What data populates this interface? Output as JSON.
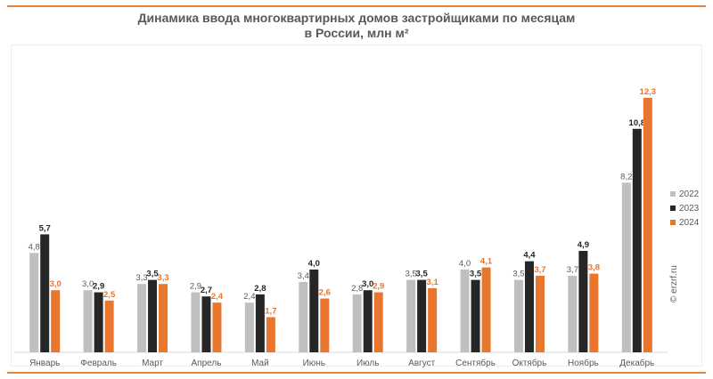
{
  "chart_data": {
    "type": "bar",
    "title": "Динамика ввода многоквартирных домов застройщиками по месяцам",
    "subtitle": "в России, млн м²",
    "xlabel": "",
    "ylabel": "",
    "ylim": [
      0,
      13.5
    ],
    "grid": false,
    "legend_position": "right",
    "categories": [
      "Январь",
      "Февраль",
      "Март",
      "Апрель",
      "Май",
      "Июнь",
      "Июль",
      "Август",
      "Сентябрь",
      "Октябрь",
      "Ноябрь",
      "Декабрь"
    ],
    "series": [
      {
        "name": "2022",
        "color": "#bfbfbf",
        "label_color": "#595959",
        "values": [
          4.8,
          3.0,
          3.3,
          2.9,
          2.4,
          3.4,
          2.8,
          3.5,
          4.0,
          3.5,
          3.7,
          8.2
        ],
        "labels": [
          "4,8",
          "3,0",
          "3,3",
          "2,9",
          "2,4",
          "3,4",
          "2,8",
          "3,5",
          "4,0",
          "3,5",
          "3,7",
          "8,2"
        ]
      },
      {
        "name": "2023",
        "color": "#262626",
        "label_color": "#262626",
        "values": [
          5.7,
          2.9,
          3.5,
          2.7,
          2.8,
          4.0,
          3.0,
          3.5,
          3.5,
          4.4,
          4.9,
          10.8
        ],
        "labels": [
          "5,7",
          "2,9",
          "3,5",
          "2,7",
          "2,8",
          "4,0",
          "3,0",
          "3,5",
          "3,5",
          "4,4",
          "4,9",
          "10,8"
        ]
      },
      {
        "name": "2024",
        "color": "#e8762c",
        "label_color": "#e8762c",
        "values": [
          3.0,
          2.5,
          3.3,
          2.4,
          1.7,
          2.6,
          2.9,
          3.1,
          4.1,
          3.7,
          3.8,
          12.3
        ],
        "labels": [
          "3,0",
          "2,5",
          "3,3",
          "2,4",
          "1,7",
          "2,6",
          "2,9",
          "3,1",
          "4,1",
          "3,7",
          "3,8",
          "12,3"
        ]
      }
    ]
  },
  "watermark": "© erzrf.ru",
  "colors": {
    "accent": "#e8833a",
    "text": "#595959"
  }
}
